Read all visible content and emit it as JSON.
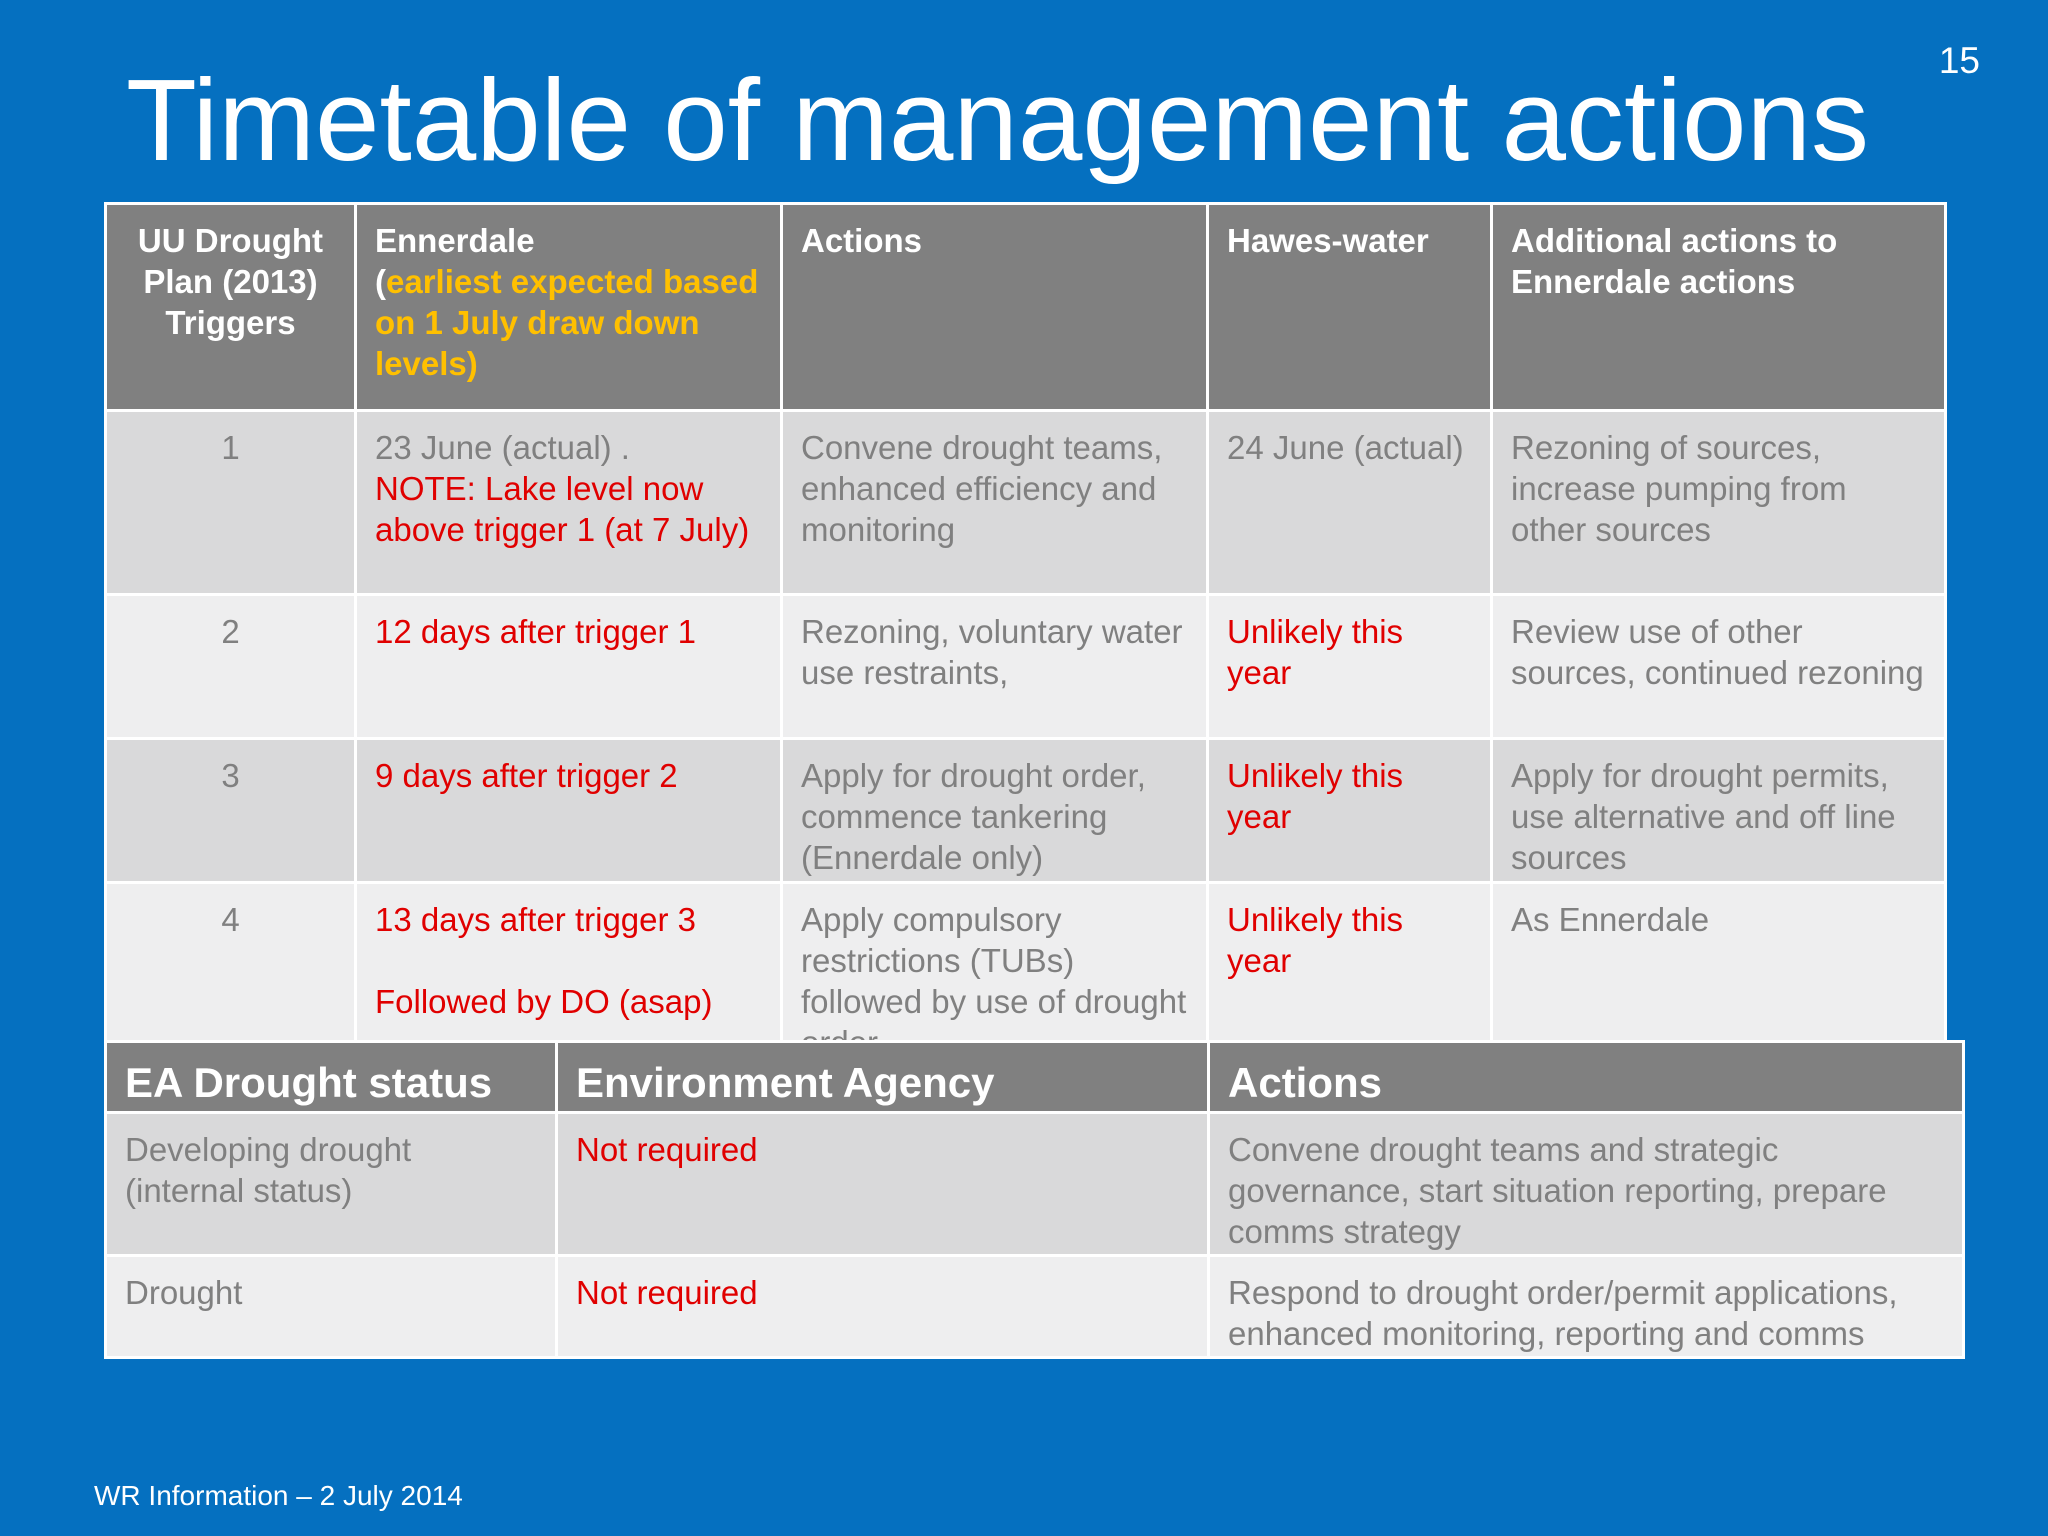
{
  "slide": {
    "number": "15",
    "title": "Timetable of management actions",
    "footer": "WR Information – 2 July 2014"
  },
  "triggers_table": {
    "headers": {
      "trigger": "UU Drought Plan (2013) Triggers",
      "ennerdale_main": "Ennerdale",
      "ennerdale_open": "(",
      "ennerdale_note": "earliest expected based on 1 July draw down levels)",
      "actions": "Actions",
      "haweswater": "Hawes-water",
      "additional": "Additional actions to Ennerdale actions"
    },
    "rows": [
      {
        "trigger": "1",
        "ennerdale": "23 June  (actual) .",
        "ennerdale_note": "NOTE: Lake level now above trigger 1 (at 7 July)",
        "actions": "Convene drought teams, enhanced efficiency and monitoring",
        "haweswater": "24 June (actual)",
        "additional": "Rezoning of sources, increase pumping from other sources"
      },
      {
        "trigger": "2",
        "ennerdale": "12 days after trigger 1",
        "actions": "Rezoning, voluntary water use restraints,",
        "haweswater": "Unlikely this year",
        "additional": "Review use of other sources, continued rezoning"
      },
      {
        "trigger": "3",
        "ennerdale": "9 days after trigger 2",
        "actions": "Apply for drought order, commence tankering (Ennerdale only)",
        "haweswater": "Unlikely this year",
        "additional": "Apply for drought permits, use alternative  and off line sources"
      },
      {
        "trigger": "4",
        "ennerdale": "13 days after trigger 3",
        "ennerdale_followup": "Followed by DO (asap)",
        "actions": "Apply compulsory restrictions (TUBs) followed by use of drought order",
        "haweswater": "Unlikely this year",
        "additional": "As Ennerdale"
      }
    ]
  },
  "ea_table": {
    "headers": {
      "status": "EA Drought status",
      "agency": "Environment Agency",
      "actions": "Actions"
    },
    "rows": [
      {
        "status": "Developing drought (internal status)",
        "agency": "Not required",
        "actions": "Convene drought teams and strategic governance, start situation reporting, prepare comms strategy"
      },
      {
        "status": "Drought",
        "agency": "Not required",
        "actions": "Respond to drought order/permit applications, enhanced  monitoring, reporting and comms"
      }
    ]
  },
  "colors": {
    "background": "#0570c0",
    "header_fill": "#808080",
    "row_odd": "#d9d9da",
    "row_even": "#eeeeef",
    "body_text": "#808080",
    "red_text": "#e00000",
    "yellow_text": "#ffc000"
  }
}
